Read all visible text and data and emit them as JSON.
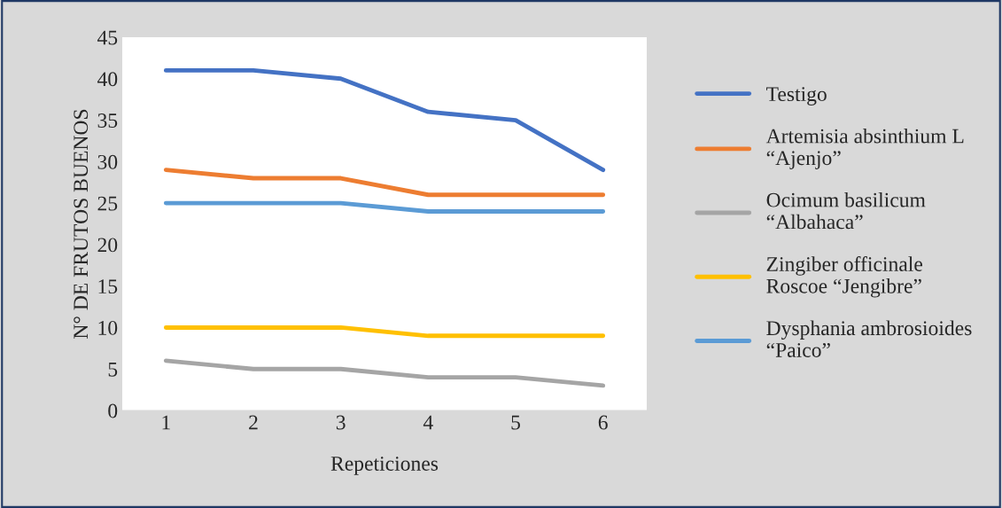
{
  "chart_data": {
    "type": "line",
    "xlabel": "Repeticiones",
    "ylabel": "N° DE FRUTOS BUENOS",
    "categories": [
      "1",
      "2",
      "3",
      "4",
      "5",
      "6"
    ],
    "series": [
      {
        "name": "Testigo",
        "color": "#4472c4",
        "values": [
          41,
          41,
          40,
          36,
          35,
          29
        ]
      },
      {
        "name": "Artemisia absinthium L\n“Ajenjo”",
        "color": "#ed7d31",
        "values": [
          29,
          28,
          28,
          26,
          26,
          26
        ]
      },
      {
        "name": "Ocimum basilicum\n“Albahaca”",
        "color": "#a5a5a5",
        "values": [
          6,
          5,
          5,
          4,
          4,
          3
        ]
      },
      {
        "name": "Zingiber officinale\nRoscoe “Jengibre”",
        "color": "#ffc000",
        "values": [
          10,
          10,
          10,
          9,
          9,
          9
        ]
      },
      {
        "name": "Dysphania ambrosioides\n“Paico”",
        "color": "#5b9bd5",
        "values": [
          25,
          25,
          25,
          24,
          24,
          24
        ]
      }
    ],
    "ylim": [
      0,
      45
    ],
    "yticks": [
      0,
      5,
      10,
      15,
      20,
      25,
      30,
      35,
      40,
      45
    ],
    "grid": false,
    "legend": "right",
    "marker": "none",
    "line_style": "solid"
  }
}
